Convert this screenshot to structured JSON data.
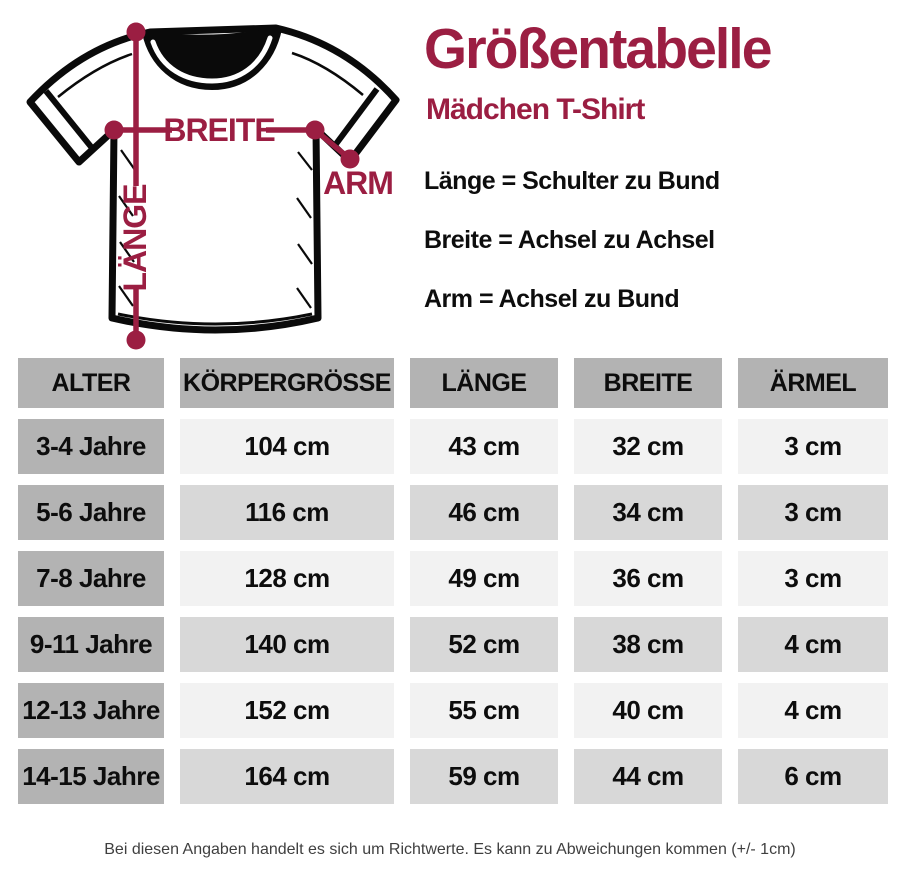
{
  "colors": {
    "accent": "#9b1e42",
    "header_gray": "#b3b3b3",
    "light_cell": "#f2f2f2",
    "medium_cell": "#d8d8d8"
  },
  "header": {
    "title": "Größentabelle",
    "subtitle": "Mädchen T-Shirt"
  },
  "definitions": [
    "Länge = Schulter zu Bund",
    "Breite = Achsel zu Achsel",
    "Arm = Achsel zu Bund"
  ],
  "diagram": {
    "labels": {
      "breite": "BREITE",
      "arm": "ARM",
      "laenge": "LÄNGE"
    }
  },
  "table": {
    "columns": [
      "ALTER",
      "KÖRPERGRÖSSE",
      "LÄNGE",
      "BREITE",
      "ÄRMEL"
    ],
    "rows": [
      {
        "age": "3-4 Jahre",
        "values": [
          "104 cm",
          "43 cm",
          "32 cm",
          "3 cm"
        ]
      },
      {
        "age": "5-6 Jahre",
        "values": [
          "116 cm",
          "46 cm",
          "34 cm",
          "3 cm"
        ]
      },
      {
        "age": "7-8 Jahre",
        "values": [
          "128 cm",
          "49 cm",
          "36 cm",
          "3 cm"
        ]
      },
      {
        "age": "9-11 Jahre",
        "values": [
          "140 cm",
          "52 cm",
          "38 cm",
          "4 cm"
        ]
      },
      {
        "age": "12-13 Jahre",
        "values": [
          "152 cm",
          "55 cm",
          "40 cm",
          "4 cm"
        ]
      },
      {
        "age": "14-15 Jahre",
        "values": [
          "164 cm",
          "59 cm",
          "44 cm",
          "6 cm"
        ]
      }
    ]
  },
  "footnote": "Bei diesen Angaben handelt es sich um Richtwerte. Es kann zu Abweichungen kommen (+/- 1cm)"
}
